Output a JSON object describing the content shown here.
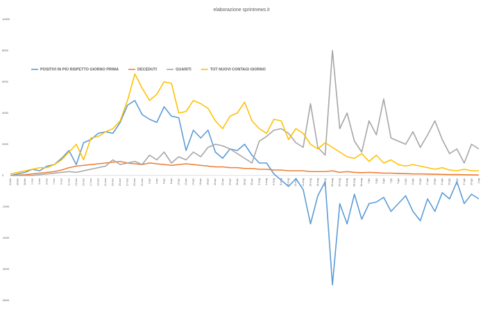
{
  "chart_data": {
    "type": "line",
    "title": "elaborazione sprintnews.it",
    "categories": [
      "24-feb",
      "26-feb",
      "28-feb",
      "1-mar",
      "3-mar",
      "5-mar",
      "7-mar",
      "9-mar",
      "11-mar",
      "13-mar",
      "15-mar",
      "17-mar",
      "19-mar",
      "21-mar",
      "23-mar",
      "25-mar",
      "27-mar",
      "29-mar",
      "31-mar",
      "2-apr",
      "4-apr",
      "6-apr",
      "8-apr",
      "10-apr",
      "12-apr",
      "14-apr",
      "16-apr",
      "18-apr",
      "20-apr",
      "22-apr",
      "24-apr",
      "26-apr",
      "28-apr",
      "30-apr",
      "2-mag",
      "4-mag",
      "6-mag",
      "8-mag",
      "10-mag",
      "12-mag",
      "14-mag",
      "16-mag",
      "18-mag",
      "20-mag",
      "22-mag",
      "24-mag",
      "26-mag",
      "28-mag",
      "30-mag",
      "1-giu",
      "3-giu",
      "5-giu",
      "7-giu",
      "9-giu",
      "11-giu",
      "13-giu",
      "15-giu",
      "17-giu",
      "19-giu",
      "21-giu",
      "23-giu",
      "25-giu",
      "27-giu",
      "29-giu",
      "1-lug"
    ],
    "series": [
      {
        "name": "POSITIVI IN PIÙ RISPETTO GIORNO PRIMA",
        "color": "#5b9bd5",
        "values": [
          0,
          100,
          200,
          400,
          300,
          600,
          700,
          1100,
          1600,
          700,
          2100,
          2300,
          2700,
          2800,
          2700,
          3400,
          4500,
          4800,
          3900,
          3600,
          3400,
          4400,
          3800,
          3700,
          1600,
          2900,
          2400,
          2900,
          1500,
          1100,
          1700,
          1600,
          2000,
          1300,
          800,
          800,
          100,
          -300,
          -700,
          -200,
          -900,
          -3100,
          -1300,
          -400,
          -7000,
          -1800,
          -3100,
          -1200,
          -2800,
          -1800,
          -1700,
          -1400,
          -2300,
          -1800,
          -1300,
          -2300,
          -2900,
          -1500,
          -2300,
          -1100,
          -1500,
          -400,
          -1800,
          -1200,
          -1500
        ]
      },
      {
        "name": "DECEDUTI",
        "color": "#ed7d31",
        "values": [
          10,
          20,
          50,
          100,
          150,
          200,
          250,
          350,
          500,
          600,
          650,
          700,
          750,
          800,
          850,
          900,
          800,
          750,
          700,
          800,
          750,
          700,
          650,
          700,
          750,
          700,
          650,
          600,
          550,
          550,
          500,
          500,
          450,
          450,
          400,
          400,
          350,
          350,
          300,
          300,
          300,
          250,
          250,
          250,
          300,
          200,
          250,
          200,
          180,
          200,
          180,
          150,
          150,
          130,
          120,
          100,
          100,
          90,
          80,
          70,
          60,
          60,
          50,
          40,
          30
        ]
      },
      {
        "name": "GUARITI",
        "color": "#a5a5a5",
        "values": [
          0,
          0,
          5,
          10,
          50,
          100,
          150,
          200,
          250,
          200,
          300,
          400,
          500,
          600,
          1000,
          700,
          800,
          900,
          700,
          1300,
          1000,
          1500,
          800,
          1200,
          1000,
          1500,
          1200,
          1800,
          2000,
          1900,
          1700,
          1400,
          1100,
          800,
          2200,
          2500,
          2900,
          3000,
          2700,
          2100,
          1800,
          4600,
          1800,
          1300,
          8000,
          3000,
          4000,
          2200,
          1500,
          3500,
          2600,
          4900,
          2400,
          2200,
          2000,
          2800,
          1800,
          2600,
          3500,
          2300,
          1400,
          1700,
          800,
          2000,
          1700
        ]
      },
      {
        "name": "TOT NUOVI CONTAGI GIORNO",
        "color": "#ffc000",
        "values": [
          100,
          200,
          300,
          400,
          500,
          500,
          700,
          1000,
          1500,
          2000,
          1000,
          2400,
          2500,
          2800,
          3000,
          3500,
          4800,
          6500,
          5600,
          4800,
          5200,
          6000,
          5900,
          4000,
          4100,
          4800,
          4600,
          4300,
          3500,
          3000,
          3800,
          4000,
          4700,
          3500,
          3000,
          2700,
          3600,
          3500,
          2300,
          3000,
          2700,
          2000,
          1700,
          2100,
          1800,
          1500,
          1200,
          1100,
          1400,
          900,
          1300,
          800,
          1000,
          700,
          600,
          700,
          600,
          500,
          400,
          500,
          350,
          300,
          400,
          300,
          300
        ]
      }
    ],
    "ylim": [
      -9000,
      10500
    ],
    "yticks": [
      10000,
      8000,
      6000,
      4000,
      2000,
      0,
      -2000,
      -4000,
      -6000,
      -8000
    ],
    "grid": false
  }
}
